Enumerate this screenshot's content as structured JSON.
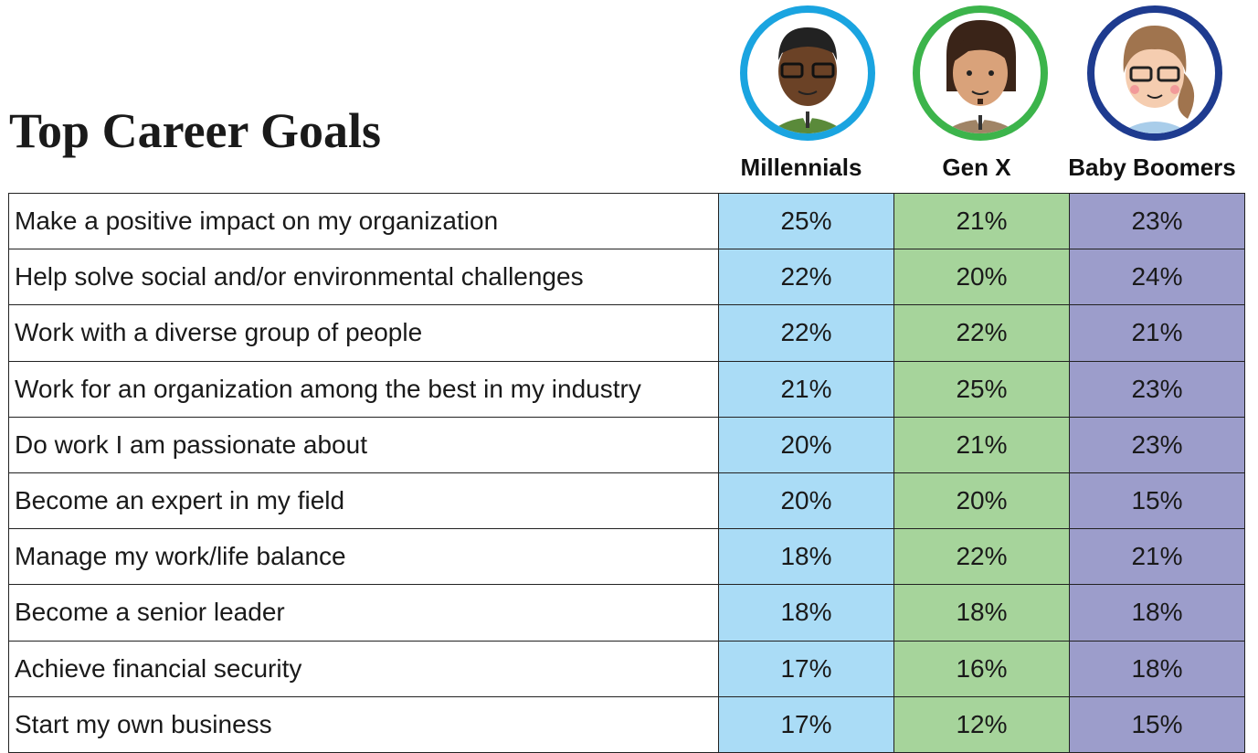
{
  "title": "Top Career Goals",
  "columns": [
    "Millennials",
    "Gen X",
    "Baby Boomers"
  ],
  "rows": [
    {
      "label": "Make a positive impact on my organization",
      "values": [
        "25%",
        "21%",
        "23%"
      ]
    },
    {
      "label": "Help solve social and/or environmental challenges",
      "values": [
        "22%",
        "20%",
        "24%"
      ]
    },
    {
      "label": "Work with a diverse group of people",
      "values": [
        "22%",
        "22%",
        "21%"
      ]
    },
    {
      "label": "Work for an organization among the best in my industry",
      "values": [
        "21%",
        "25%",
        "23%"
      ]
    },
    {
      "label": "Do work I am passionate about",
      "values": [
        "20%",
        "21%",
        "23%"
      ]
    },
    {
      "label": "Become an expert in my field",
      "values": [
        "20%",
        "20%",
        "15%"
      ]
    },
    {
      "label": "Manage my work/life balance",
      "values": [
        "18%",
        "22%",
        "21%"
      ]
    },
    {
      "label": "Become a senior leader",
      "values": [
        "18%",
        "18%",
        "18%"
      ]
    },
    {
      "label": "Achieve financial security",
      "values": [
        "17%",
        "16%",
        "18%"
      ]
    },
    {
      "label": "Start my own business",
      "values": [
        "17%",
        "12%",
        "15%"
      ]
    }
  ]
}
